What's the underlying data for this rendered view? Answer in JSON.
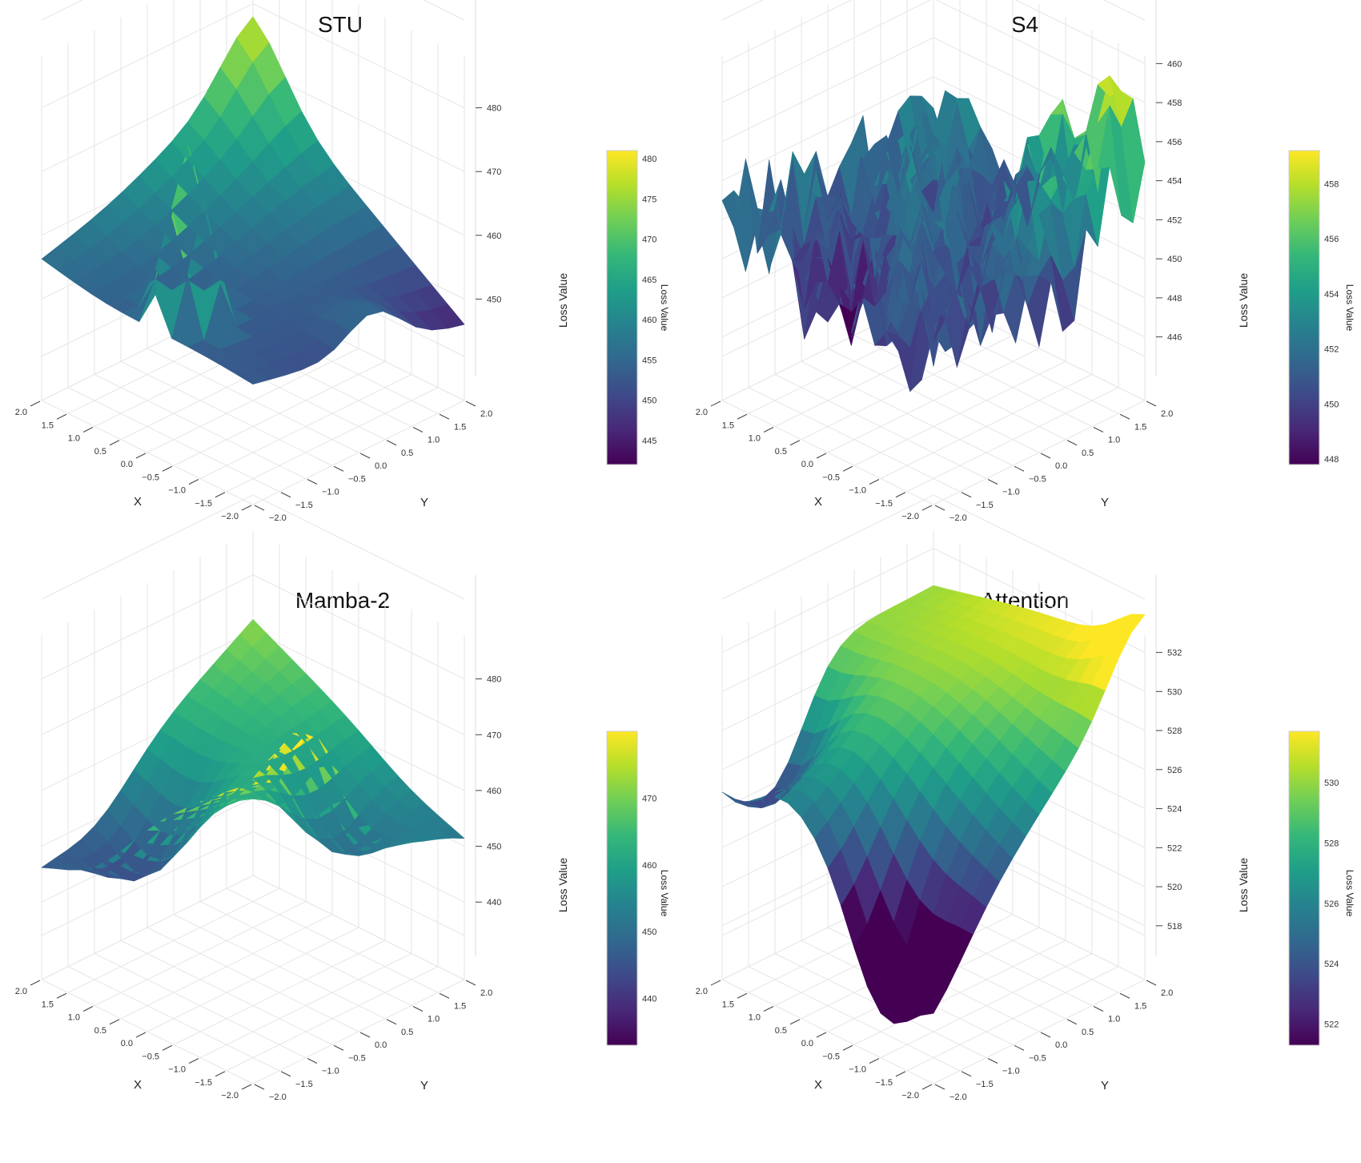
{
  "figure": {
    "colorscale": [
      "#440154",
      "#482878",
      "#3e4a89",
      "#31688e",
      "#26828e",
      "#1f9e89",
      "#35b779",
      "#6ece58",
      "#b5de2b",
      "#fde725"
    ]
  },
  "chart_data": [
    {
      "type": "surface3d",
      "title": "STU",
      "xlabel": "X",
      "ylabel": "Y",
      "zlabel": "Loss Value",
      "colorbar_title": "Loss Value",
      "x_ticks": [
        "2.0",
        "1.5",
        "1.0",
        "0.5",
        "0.0",
        "−0.5",
        "−1.0",
        "−1.5",
        "−2.0"
      ],
      "y_ticks": [
        "2.0",
        "1.5",
        "1.0",
        "0.5",
        "0.0",
        "−0.5",
        "−1.0",
        "−1.5",
        "−2.0"
      ],
      "x_range": [
        -2,
        2
      ],
      "y_range": [
        -2,
        2
      ],
      "z_range": [
        441,
        490
      ],
      "z_ticks": [
        450,
        460,
        470,
        480
      ],
      "colorbar_range": [
        442,
        481
      ],
      "colorbar_ticks": [
        445,
        450,
        455,
        460,
        465,
        470,
        475,
        480
      ],
      "grid": true,
      "grid_n": 13,
      "corners": {
        "x2_y2": 457,
        "x2_ym2": 470,
        "xm2_y2": 453,
        "xm2_ym2": 446
      },
      "features": [
        {
          "x": -2.0,
          "y": -0.3,
          "amp": 6,
          "sigma": 0.5
        },
        {
          "x": 2.0,
          "y": -2.0,
          "amp": 8,
          "sigma": 0.6
        },
        {
          "x": 0.8,
          "y": 0.8,
          "amp": -3,
          "sigma": 1.0
        }
      ],
      "peak": {
        "x": -0.2,
        "y": 1.4,
        "amp": 29,
        "spread": 0.8
      },
      "noise": 0
    },
    {
      "type": "surface3d",
      "title": "S4",
      "xlabel": "X",
      "ylabel": "Y",
      "zlabel": "Loss Value",
      "colorbar_title": "Loss Value",
      "x_ticks": [
        "2.0",
        "1.5",
        "1.0",
        "0.5",
        "0.0",
        "−0.5",
        "−1.0",
        "−1.5",
        "−2.0"
      ],
      "y_ticks": [
        "2.0",
        "1.5",
        "1.0",
        "0.5",
        "0.0",
        "−0.5",
        "−1.0",
        "−1.5",
        "−2.0"
      ],
      "x_range": [
        -2,
        2
      ],
      "y_range": [
        -2,
        2
      ],
      "z_range": [
        445,
        461
      ],
      "z_ticks": [
        446,
        448,
        450,
        452,
        454,
        456,
        458,
        460
      ],
      "colorbar_range": [
        447.8,
        459.2
      ],
      "colorbar_ticks": [
        448,
        450,
        452,
        454,
        456,
        458
      ],
      "grid": true,
      "grid_n": 18,
      "corners": {
        "x2_y2": 452,
        "x2_ym2": 452,
        "xm2_y2": 450,
        "xm2_ym2": 451
      },
      "features": [
        {
          "x": -1.6,
          "y": -1.7,
          "amp": 7,
          "sigma": 0.35
        },
        {
          "x": -1.0,
          "y": -1.2,
          "amp": 3,
          "sigma": 0.5
        },
        {
          "x": 0.5,
          "y": 1.2,
          "amp": -3,
          "sigma": 0.5
        }
      ],
      "peak": null,
      "noise": 2.6
    },
    {
      "type": "surface3d",
      "title": "Mamba-2",
      "xlabel": "X",
      "ylabel": "Y",
      "zlabel": "Loss Value",
      "colorbar_title": "Loss Value",
      "x_ticks": [
        "2.0",
        "1.5",
        "1.0",
        "0.5",
        "0.0",
        "−0.5",
        "−1.0",
        "−1.5",
        "−2.0"
      ],
      "y_ticks": [
        "2.0",
        "1.5",
        "1.0",
        "0.5",
        "0.0",
        "−0.5",
        "−1.0",
        "−1.5",
        "−2.0"
      ],
      "x_range": [
        -2,
        2
      ],
      "y_range": [
        -2,
        2
      ],
      "z_range": [
        434,
        490
      ],
      "z_ticks": [
        440,
        450,
        460,
        470,
        480
      ],
      "colorbar_range": [
        433,
        480
      ],
      "colorbar_ticks": [
        440,
        450,
        460,
        470
      ],
      "grid": true,
      "grid_n": 16,
      "corners": {
        "x2_y2": 448,
        "x2_ym2": 472,
        "xm2_y2": 480,
        "xm2_ym2": 452
      },
      "features": [
        {
          "x": 1.0,
          "y": 1.0,
          "amp": -14,
          "sigma": 0.7
        },
        {
          "x": -1.0,
          "y": -0.6,
          "amp": -12,
          "sigma": 0.7
        },
        {
          "x": -1.6,
          "y": 0.6,
          "amp": 14,
          "sigma": 0.45
        },
        {
          "x": 0.0,
          "y": 0.0,
          "amp": 4,
          "sigma": 0.5
        }
      ],
      "peak": null,
      "noise": 0
    },
    {
      "type": "surface3d",
      "title": "Attention",
      "xlabel": "X",
      "ylabel": "Y",
      "zlabel": "Loss Value",
      "colorbar_title": "Loss Value",
      "x_ticks": [
        "2.0",
        "1.5",
        "1.0",
        "0.5",
        "0.0",
        "−0.5",
        "−1.0",
        "−1.5",
        "−2.0"
      ],
      "y_ticks": [
        "2.0",
        "1.5",
        "1.0",
        "0.5",
        "0.0",
        "−0.5",
        "−1.0",
        "−1.5",
        "−2.0"
      ],
      "x_range": [
        -2,
        2
      ],
      "y_range": [
        -2,
        2
      ],
      "z_range": [
        517.5,
        533.5
      ],
      "z_ticks": [
        518,
        520,
        522,
        524,
        526,
        528,
        530,
        532
      ],
      "colorbar_range": [
        521.3,
        531.7
      ],
      "colorbar_ticks": [
        522,
        524,
        526,
        528,
        530
      ],
      "grid": true,
      "grid_n": 16,
      "corners": {
        "x2_y2": 529,
        "x2_ym2": 530,
        "xm2_y2": 520,
        "xm2_ym2": 532
      },
      "features": [
        {
          "x": 2.0,
          "y": 1.0,
          "amp": -5,
          "sigma": 0.6
        },
        {
          "x": -1.0,
          "y": 2.0,
          "amp": -5,
          "sigma": 0.6
        },
        {
          "x": 2.0,
          "y": 2.0,
          "amp": -3,
          "sigma": 0.6
        },
        {
          "x": -2.0,
          "y": -1.8,
          "amp": 2,
          "sigma": 0.5
        },
        {
          "x": 0.0,
          "y": 0.0,
          "amp": 1.5,
          "sigma": 1.2
        }
      ],
      "peak": null,
      "noise": 0
    }
  ]
}
